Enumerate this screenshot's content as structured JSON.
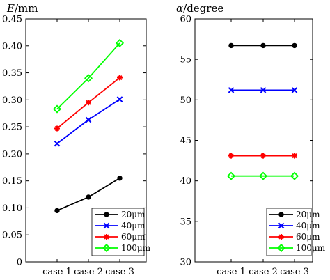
{
  "chart_data": [
    {
      "type": "line",
      "title": "",
      "ylabel_var": "E",
      "ylabel_unit": "/mm",
      "xlabel": "",
      "categories": [
        "case 1",
        "case 2",
        "case 3"
      ],
      "ylim": [
        0,
        0.45
      ],
      "yticks": [
        "0",
        "0.05",
        "0.10",
        "0.15",
        "0.20",
        "0.25",
        "0.30",
        "0.35",
        "0.40",
        "0.45"
      ],
      "grid": false,
      "legend_position": "bottom-right",
      "series": [
        {
          "name": "20μm",
          "values": [
            0.095,
            0.12,
            0.155
          ],
          "color": "#000000",
          "marker": "dot"
        },
        {
          "name": "40μm",
          "values": [
            0.219,
            0.263,
            0.301
          ],
          "color": "#0000ff",
          "marker": "x"
        },
        {
          "name": "60μm",
          "values": [
            0.247,
            0.295,
            0.341
          ],
          "color": "#ff0000",
          "marker": "star"
        },
        {
          "name": "100μm",
          "values": [
            0.283,
            0.34,
            0.405
          ],
          "color": "#00ff00",
          "marker": "diamond"
        }
      ]
    },
    {
      "type": "line",
      "title": "",
      "ylabel_var": "α",
      "ylabel_unit": "/degree",
      "xlabel": "",
      "categories": [
        "case 1",
        "case 2",
        "case 3"
      ],
      "ylim": [
        30,
        60
      ],
      "yticks": [
        "30",
        "35",
        "40",
        "45",
        "50",
        "55",
        "60"
      ],
      "grid": false,
      "legend_position": "bottom-right",
      "series": [
        {
          "name": "20μm",
          "values": [
            56.7,
            56.7,
            56.7
          ],
          "color": "#000000",
          "marker": "dot"
        },
        {
          "name": "40μm",
          "values": [
            51.2,
            51.2,
            51.2
          ],
          "color": "#0000ff",
          "marker": "x"
        },
        {
          "name": "60μm",
          "values": [
            43.1,
            43.1,
            43.1
          ],
          "color": "#ff0000",
          "marker": "star"
        },
        {
          "name": "100μm",
          "values": [
            40.6,
            40.6,
            40.6
          ],
          "color": "#00ff00",
          "marker": "diamond"
        }
      ]
    }
  ]
}
